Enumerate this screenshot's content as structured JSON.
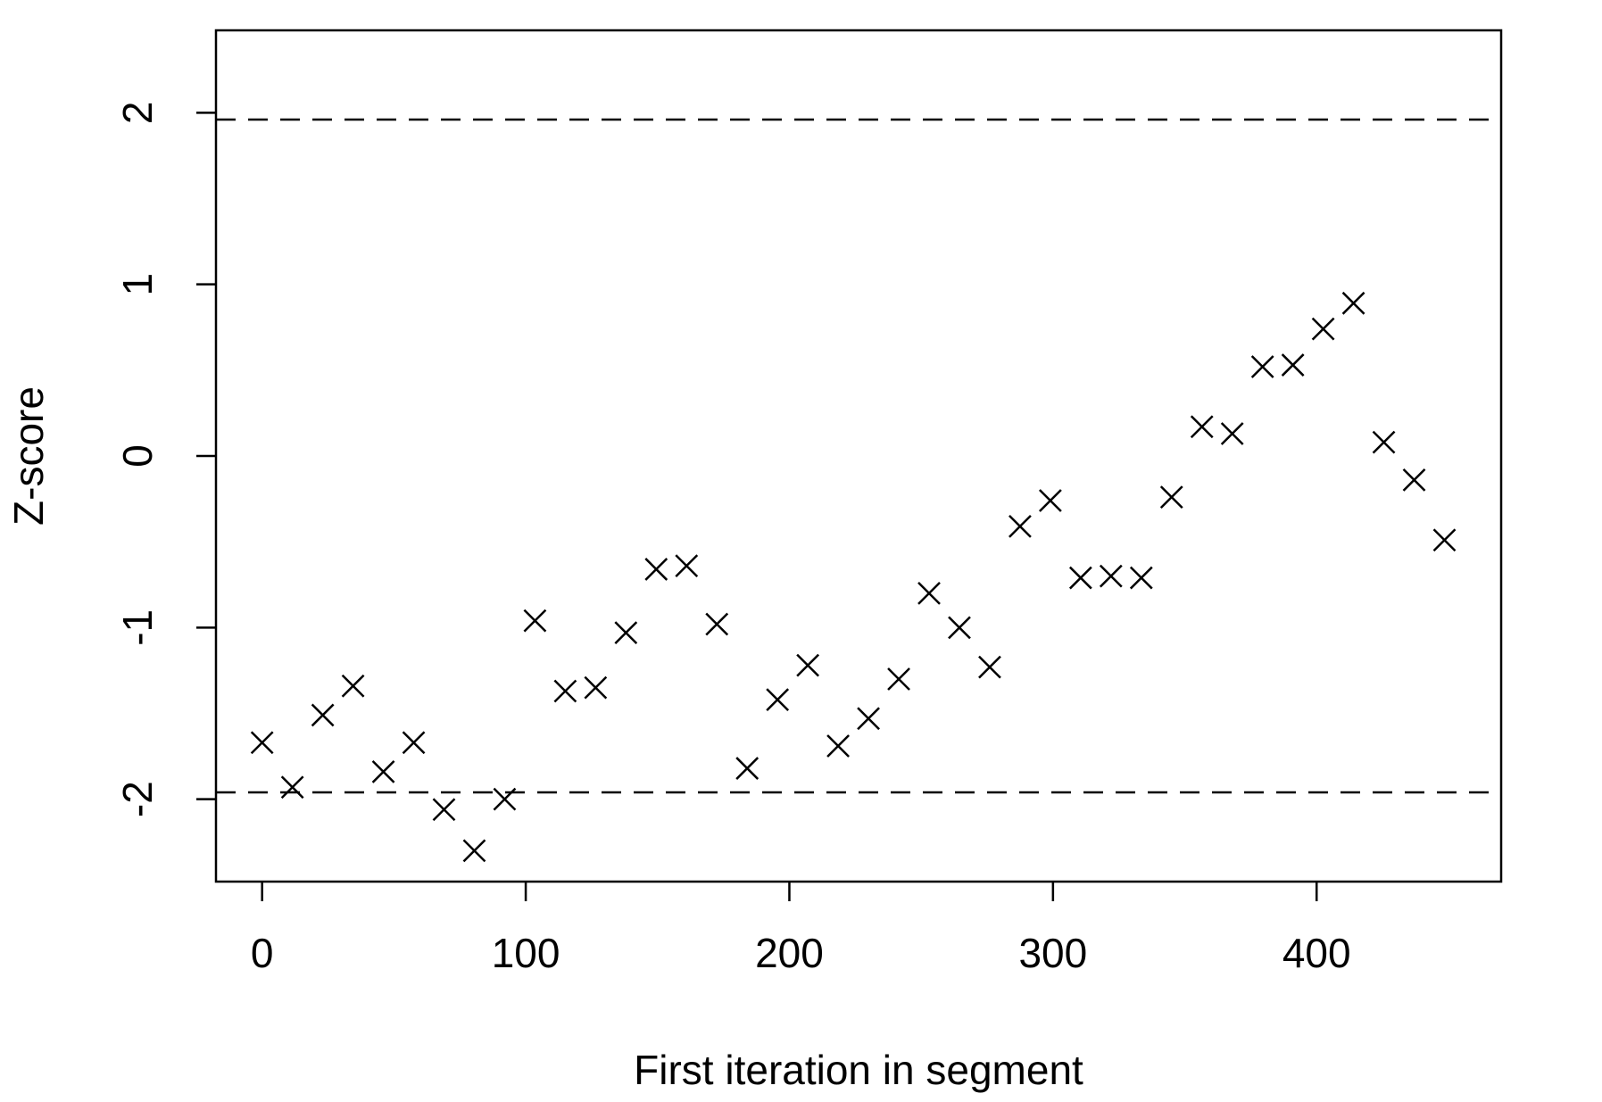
{
  "chart_data": {
    "type": "scatter",
    "title": "",
    "xlabel": "First iteration in segment",
    "ylabel": "Z-score",
    "xlim": [
      -17.5,
      470
    ],
    "ylim": [
      -2.48,
      2.48
    ],
    "xticks": [
      0,
      100,
      200,
      300,
      400
    ],
    "yticks": [
      -2,
      -1,
      0,
      1,
      2
    ],
    "xtick_labels": [
      "0",
      "100",
      "200",
      "300",
      "400"
    ],
    "ytick_labels": [
      "-2",
      "-1",
      "0",
      "1",
      "2"
    ],
    "reference_lines": [
      1.96,
      -1.96
    ],
    "grid": false,
    "marker": "x",
    "color": "#000000",
    "points": [
      {
        "x": 0,
        "y": -1.67
      },
      {
        "x": 11.5,
        "y": -1.93
      },
      {
        "x": 23,
        "y": -1.51
      },
      {
        "x": 34.5,
        "y": -1.34
      },
      {
        "x": 46,
        "y": -1.84
      },
      {
        "x": 57.5,
        "y": -1.67
      },
      {
        "x": 69,
        "y": -2.06
      },
      {
        "x": 80.5,
        "y": -2.3
      },
      {
        "x": 92,
        "y": -2.0
      },
      {
        "x": 103.5,
        "y": -0.96
      },
      {
        "x": 115,
        "y": -1.37
      },
      {
        "x": 126.5,
        "y": -1.35
      },
      {
        "x": 138,
        "y": -1.03
      },
      {
        "x": 149.5,
        "y": -0.66
      },
      {
        "x": 161,
        "y": -0.64
      },
      {
        "x": 172.5,
        "y": -0.98
      },
      {
        "x": 184,
        "y": -1.82
      },
      {
        "x": 195.5,
        "y": -1.42
      },
      {
        "x": 207,
        "y": -1.22
      },
      {
        "x": 218.5,
        "y": -1.69
      },
      {
        "x": 230,
        "y": -1.53
      },
      {
        "x": 241.5,
        "y": -1.3
      },
      {
        "x": 253,
        "y": -0.8
      },
      {
        "x": 264.5,
        "y": -1.0
      },
      {
        "x": 276,
        "y": -1.23
      },
      {
        "x": 287.5,
        "y": -0.41
      },
      {
        "x": 299,
        "y": -0.26
      },
      {
        "x": 310.5,
        "y": -0.71
      },
      {
        "x": 322,
        "y": -0.7
      },
      {
        "x": 333.5,
        "y": -0.71
      },
      {
        "x": 345,
        "y": -0.24
      },
      {
        "x": 356.5,
        "y": 0.17
      },
      {
        "x": 368,
        "y": 0.13
      },
      {
        "x": 379.5,
        "y": 0.52
      },
      {
        "x": 391,
        "y": 0.53
      },
      {
        "x": 402.5,
        "y": 0.74
      },
      {
        "x": 414,
        "y": 0.89
      },
      {
        "x": 425.5,
        "y": 0.08
      },
      {
        "x": 437,
        "y": -0.14
      },
      {
        "x": 448.5,
        "y": -0.49
      }
    ]
  }
}
